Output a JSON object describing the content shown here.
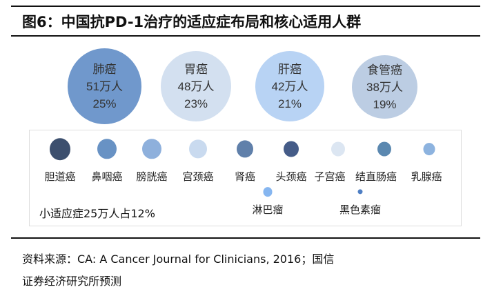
{
  "title": "图6：中国抗PD-1治疗的适应症布局和核心适用人群",
  "major": [
    {
      "name": "肺癌",
      "people": "51万人",
      "share": "25%",
      "color": "#7098cc"
    },
    {
      "name": "胃癌",
      "people": "48万人",
      "share": "23%",
      "color": "#d3e0f0"
    },
    {
      "name": "肝癌",
      "people": "42万人",
      "share": "21%",
      "color": "#b8d3f4"
    },
    {
      "name": "食管癌",
      "people": "38万人",
      "share": "19%",
      "color": "#bccde3"
    }
  ],
  "minor": [
    {
      "name": "胆道癌",
      "color": "#3c4f6e"
    },
    {
      "name": "鼻咽癌",
      "color": "#6892c4"
    },
    {
      "name": "膀胱癌",
      "color": "#8eb0dc"
    },
    {
      "name": "宫颈癌",
      "color": "#c9daef"
    },
    {
      "name": "肾癌",
      "color": "#6080aa"
    },
    {
      "name": "头颈癌",
      "color": "#455c88"
    },
    {
      "name": "子宫癌",
      "color": "#dce6f2"
    },
    {
      "name": "结直肠癌",
      "color": "#5b88b0"
    },
    {
      "name": "乳腺癌",
      "color": "#8db3df"
    },
    {
      "name": "淋巴瘤",
      "color": "#86b6f0"
    },
    {
      "name": "黑色素瘤",
      "color": "#4f7fc4"
    }
  ],
  "minor_summary": "小适应症25万人占12%",
  "source_line1": "资料来源：CA: A Cancer Journal for Clinicians, 2016；国信",
  "source_line2": "证券经济研究所预测"
}
